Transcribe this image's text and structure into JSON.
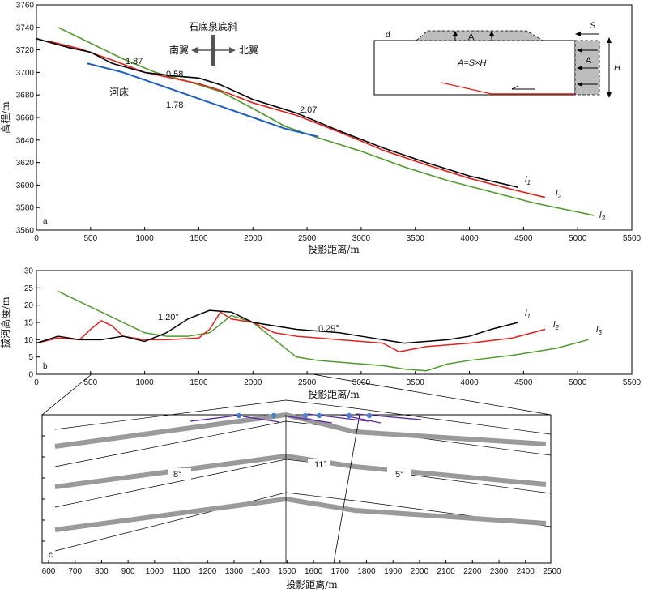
{
  "panel_a": {
    "letter": "a",
    "xlabel": "投影距离/m",
    "ylabel": "高程/m",
    "x_ticks": [
      0,
      500,
      1000,
      1500,
      2000,
      2500,
      3000,
      3500,
      4000,
      4500,
      5000,
      5500
    ],
    "y_ticks": [
      3560,
      3580,
      3600,
      3620,
      3640,
      3660,
      3680,
      3700,
      3720,
      3740,
      3760
    ],
    "annotations": [
      "1.87",
      "0.58",
      "1.78",
      "2.07"
    ],
    "river_label": "河床",
    "compass_title": "石底泉底斜",
    "compass_left": "南翼",
    "compass_right": "北翼",
    "line_labels": [
      "l",
      "l",
      "l"
    ],
    "line_subs": [
      "1",
      "2",
      "3"
    ],
    "inset": {
      "letter": "d",
      "formula": "A=S×H",
      "s_label": "S",
      "h_label": "H",
      "a_label": "A"
    }
  },
  "panel_b": {
    "letter": "b",
    "xlabel": "投影距离/m",
    "ylabel": "拔河高度/m",
    "x_ticks": [
      0,
      500,
      1000,
      1500,
      2000,
      2500,
      3000,
      3500,
      4000,
      4500,
      5000,
      5500
    ],
    "y_ticks": [
      0,
      5,
      10,
      15,
      20,
      25,
      30
    ],
    "annotations": [
      "1.20°",
      "0.29°"
    ]
  },
  "panel_c": {
    "letter": "c",
    "xlabel": "投影距离/m",
    "x_ticks": [
      600,
      700,
      800,
      900,
      1000,
      1100,
      1200,
      1300,
      1400,
      1500,
      1600,
      1700,
      1800,
      1900,
      2000,
      2100,
      2200,
      2300,
      2400,
      2500
    ],
    "annotations": [
      "8°",
      "11°",
      "5°"
    ]
  },
  "colors": {
    "l1": "#000000",
    "l2": "#e0201c",
    "l3": "#4f9a2c",
    "river": "#1f5fbf",
    "bed": "#9a9a9a",
    "dip": "#5a2a9a",
    "dot": "#4a7fd0"
  },
  "chart_data": [
    {
      "type": "line",
      "xlabel": "投影距离/m",
      "ylabel": "高程/m",
      "xlim": [
        0,
        5500
      ],
      "ylim": [
        3560,
        3760
      ],
      "series": [
        {
          "name": "l1",
          "x": [
            0,
            300,
            500,
            700,
            1000,
            1250,
            1500,
            1700,
            2000,
            2400,
            2800,
            3200,
            3600,
            4000,
            4450
          ],
          "y": [
            3730,
            3722,
            3718,
            3708,
            3700,
            3697,
            3695,
            3689,
            3676,
            3664,
            3648,
            3633,
            3620,
            3608,
            3598
          ]
        },
        {
          "name": "l2",
          "x": [
            100,
            400,
            700,
            1000,
            1300,
            1500,
            1700,
            2000,
            2400,
            2800,
            3200,
            3600,
            4000,
            4400,
            4700
          ],
          "y": [
            3728,
            3721,
            3711,
            3700,
            3694,
            3690,
            3684,
            3673,
            3662,
            3647,
            3631,
            3618,
            3606,
            3596,
            3589
          ]
        },
        {
          "name": "l3",
          "x": [
            200,
            500,
            800,
            1100,
            1400,
            1700,
            2000,
            2300,
            2600,
            3000,
            3400,
            3800,
            4200,
            4600,
            5000,
            5150
          ],
          "y": [
            3740,
            3726,
            3712,
            3700,
            3692,
            3683,
            3668,
            3652,
            3642,
            3630,
            3616,
            3604,
            3594,
            3584,
            3576,
            3573
          ]
        },
        {
          "name": "河床",
          "x": [
            470,
            800,
            1100,
            1400,
            1700,
            2000,
            2300,
            2600
          ],
          "y": [
            3708,
            3700,
            3690,
            3680,
            3670,
            3660,
            3650,
            3643
          ]
        }
      ]
    },
    {
      "type": "line",
      "xlabel": "投影距离/m",
      "ylabel": "拔河高度/m",
      "xlim": [
        0,
        5500
      ],
      "ylim": [
        0,
        30
      ],
      "series": [
        {
          "name": "l1",
          "x": [
            0,
            200,
            400,
            600,
            800,
            1000,
            1200,
            1400,
            1600,
            1800,
            2000,
            2200,
            2400,
            2600,
            2800,
            3000,
            3200,
            3400,
            3600,
            3800,
            4000,
            4200,
            4450
          ],
          "y": [
            9,
            11,
            10,
            10,
            11,
            9.5,
            12,
            16,
            18.5,
            18,
            15,
            14,
            13,
            12.5,
            12,
            11,
            10,
            9,
            9.5,
            10,
            11,
            13,
            15
          ]
        },
        {
          "name": "l2",
          "x": [
            0,
            200,
            400,
            500,
            600,
            700,
            800,
            1000,
            1200,
            1500,
            1600,
            1700,
            1800,
            2000,
            2200,
            2400,
            2800,
            3200,
            3350,
            3600,
            4000,
            4400,
            4700
          ],
          "y": [
            9,
            10.5,
            10,
            13,
            15.5,
            14,
            11,
            10,
            10,
            10.5,
            13,
            18,
            16,
            15,
            12,
            11,
            10,
            9,
            6.5,
            8,
            9,
            10.5,
            13
          ]
        },
        {
          "name": "l3",
          "x": [
            200,
            400,
            600,
            800,
            1000,
            1200,
            1400,
            1600,
            1800,
            2000,
            2200,
            2400,
            2600,
            2800,
            3000,
            3200,
            3400,
            3600,
            3800,
            4000,
            4400,
            4800,
            5100
          ],
          "y": [
            24,
            21,
            18,
            15,
            12,
            11,
            11,
            12,
            17,
            15,
            10,
            5,
            4,
            3.5,
            3,
            2.5,
            1.5,
            1,
            3,
            4,
            5.5,
            7.5,
            10
          ]
        }
      ]
    },
    {
      "type": "line",
      "xlabel": "投影距离/m",
      "xlim": [
        600,
        2520
      ],
      "series": [
        {
          "name": "8°",
          "x": [
            650,
            1530
          ],
          "y": [
            0.82,
            0.97
          ]
        },
        {
          "name": "11°",
          "x": [
            1530,
            1720
          ],
          "y": [
            0.97,
            0.92
          ]
        },
        {
          "name": "5°",
          "x": [
            1720,
            2500
          ],
          "y": [
            0.92,
            0.86
          ]
        }
      ]
    }
  ]
}
